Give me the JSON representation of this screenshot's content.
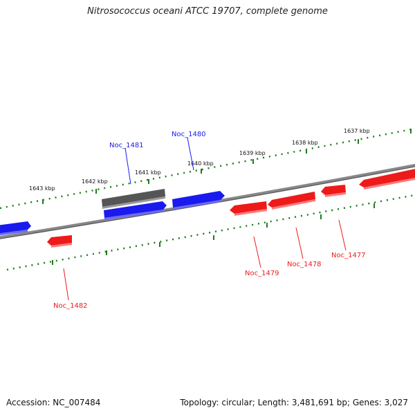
{
  "title": "Nitrosococcus oceani ATCC 19707, complete genome",
  "footer": {
    "accession": "Accession: NC_007484",
    "summary": "Topology: circular; Length: 3,481,691 bp; Genes: 3,027"
  },
  "colors": {
    "forward": "#1a1aee",
    "reverse": "#ee1a1a",
    "other": "#555555",
    "tick": "#1e7a1e",
    "backbone": "#888888"
  },
  "ticks": [
    {
      "label": "1637 kbp"
    },
    {
      "label": "1638 kbp"
    },
    {
      "label": "1639 kbp"
    },
    {
      "label": "1640 kbp"
    },
    {
      "label": "1641 kbp"
    },
    {
      "label": "1642 kbp"
    },
    {
      "label": "1643 kbp"
    }
  ],
  "genes": [
    {
      "label": "Noc_1481",
      "strand": "forward"
    },
    {
      "label": "Noc_1480",
      "strand": "forward"
    },
    {
      "label": "Noc_1479",
      "strand": "reverse"
    },
    {
      "label": "Noc_1478",
      "strand": "reverse"
    },
    {
      "label": "Noc_1477",
      "strand": "reverse"
    },
    {
      "label": "Noc_1482",
      "strand": "reverse"
    }
  ]
}
